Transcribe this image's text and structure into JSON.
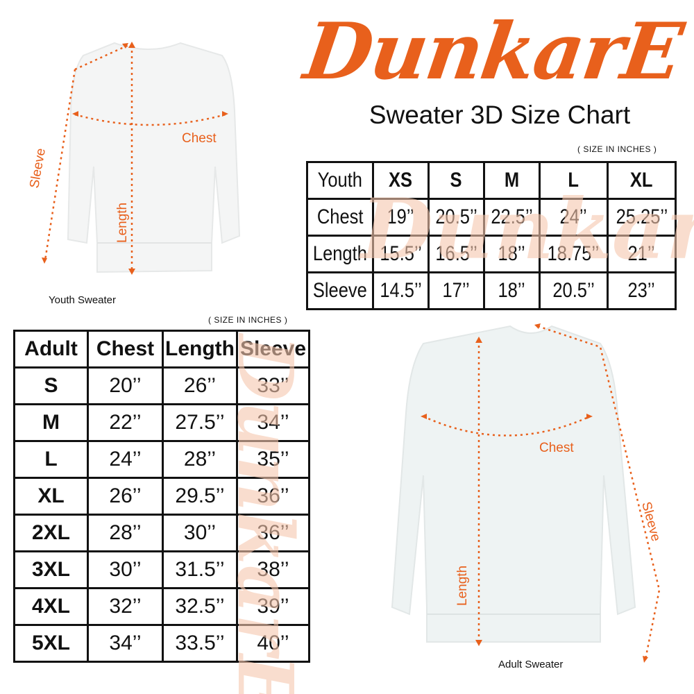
{
  "brand": {
    "logo_text": "DunkarE",
    "title": "Sweater 3D Size Chart",
    "accent": "#e8601c"
  },
  "youth": {
    "unit_note": "( SIZE IN INCHES )",
    "caption": "Youth Sweater",
    "labels": {
      "chest": "Chest",
      "length": "Length",
      "sleeve": "Sleeve"
    },
    "header": [
      "Youth",
      "XS",
      "S",
      "M",
      "L",
      "XL"
    ],
    "rows": [
      [
        "Chest",
        "19’’",
        "20.5’’",
        "22.5’’",
        "24’’",
        "25.25’’"
      ],
      [
        "Length",
        "15.5’’",
        "16.5’’",
        "18’’",
        "18.75’’",
        "21’’"
      ],
      [
        "Sleeve",
        "14.5’’",
        "17’’",
        "18’’",
        "20.5’’",
        "23’’"
      ]
    ]
  },
  "adult": {
    "unit_note": "( SIZE IN INCHES )",
    "caption": "Adult Sweater",
    "labels": {
      "chest": "Chest",
      "length": "Length",
      "sleeve": "Sleeve"
    },
    "header": [
      "Adult",
      "Chest",
      "Length",
      "Sleeve"
    ],
    "rows": [
      [
        "S",
        "20’’",
        "26’’",
        "33’’"
      ],
      [
        "M",
        "22’’",
        "27.5’’",
        "34’’"
      ],
      [
        "L",
        "24’’",
        "28’’",
        "35’’"
      ],
      [
        "XL",
        "26’’",
        "29.5’’",
        "36’’"
      ],
      [
        "2XL",
        "28’’",
        "30’’",
        "36’’"
      ],
      [
        "3XL",
        "30’’",
        "31.5’’",
        "38’’"
      ],
      [
        "4XL",
        "32’’",
        "32.5’’",
        "39’’"
      ],
      [
        "5XL",
        "34’’",
        "33.5’’",
        "40’’"
      ]
    ]
  }
}
